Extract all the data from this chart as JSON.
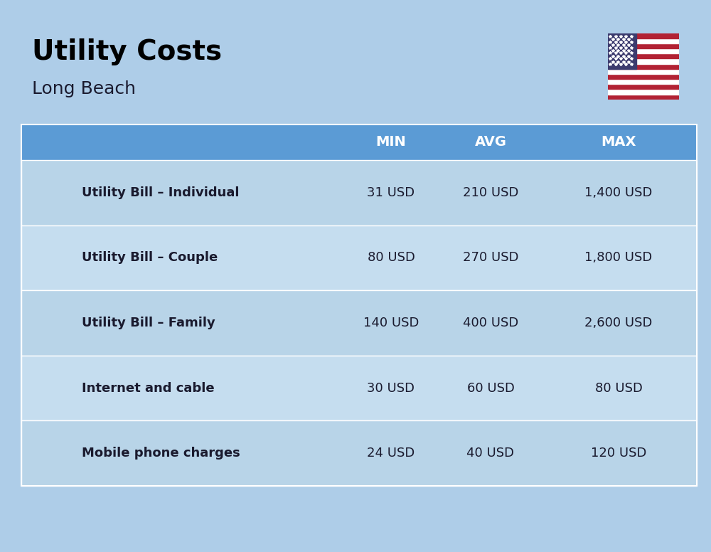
{
  "title": "Utility Costs",
  "subtitle": "Long Beach",
  "background_color": "#aecde8",
  "header_color": "#5b9bd5",
  "header_text_color": "#ffffff",
  "row_color_dark": "#b8d4e8",
  "row_color_light": "#c5ddef",
  "cell_text_color": "#1a1a2e",
  "title_color": "#000000",
  "subtitle_color": "#1a1a2e",
  "columns": [
    "MIN",
    "AVG",
    "MAX"
  ],
  "rows": [
    {
      "label": "Utility Bill – Individual",
      "min": "31 USD",
      "avg": "210 USD",
      "max": "1,400 USD",
      "icon": "utility"
    },
    {
      "label": "Utility Bill – Couple",
      "min": "80 USD",
      "avg": "270 USD",
      "max": "1,800 USD",
      "icon": "utility"
    },
    {
      "label": "Utility Bill – Family",
      "min": "140 USD",
      "avg": "400 USD",
      "max": "2,600 USD",
      "icon": "utility"
    },
    {
      "label": "Internet and cable",
      "min": "30 USD",
      "avg": "60 USD",
      "max": "80 USD",
      "icon": "internet"
    },
    {
      "label": "Mobile phone charges",
      "min": "24 USD",
      "avg": "40 USD",
      "max": "120 USD",
      "icon": "mobile"
    }
  ]
}
